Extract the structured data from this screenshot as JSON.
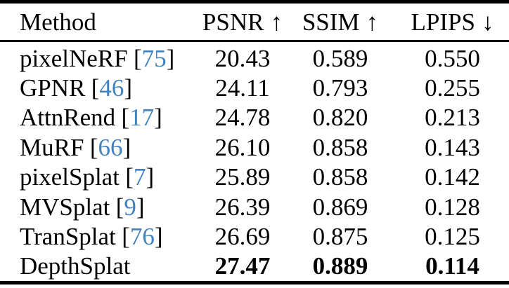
{
  "colors": {
    "background": "#ffffff",
    "text": "#000000",
    "rule": "#000000",
    "citation_link": "#4182be"
  },
  "punct": {
    "open_bracket": "[",
    "close_bracket": "]"
  },
  "table": {
    "headers": {
      "method": "Method",
      "psnr": "PSNR",
      "ssim": "SSIM",
      "lpips": "LPIPS"
    },
    "arrows": {
      "up": "↑",
      "down": "↓"
    },
    "rows": [
      {
        "method": "pixelNeRF",
        "cite": "75",
        "psnr": "20.43",
        "ssim": "0.589",
        "lpips": "0.550"
      },
      {
        "method": "GPNR",
        "cite": "46",
        "psnr": "24.11",
        "ssim": "0.793",
        "lpips": "0.255"
      },
      {
        "method": "AttnRend",
        "cite": "17",
        "psnr": "24.78",
        "ssim": "0.820",
        "lpips": "0.213"
      },
      {
        "method": "MuRF",
        "cite": "66",
        "psnr": "26.10",
        "ssim": "0.858",
        "lpips": "0.143"
      },
      {
        "method": "pixelSplat",
        "cite": "7",
        "psnr": "25.89",
        "ssim": "0.858",
        "lpips": "0.142"
      },
      {
        "method": "MVSplat",
        "cite": "9",
        "psnr": "26.39",
        "ssim": "0.869",
        "lpips": "0.128"
      },
      {
        "method": "TranSplat",
        "cite": "76",
        "psnr": "26.69",
        "ssim": "0.875",
        "lpips": "0.125"
      },
      {
        "method": "DepthSplat",
        "cite": "",
        "psnr": "27.47",
        "ssim": "0.889",
        "lpips": "0.114",
        "highlight": true
      }
    ]
  }
}
